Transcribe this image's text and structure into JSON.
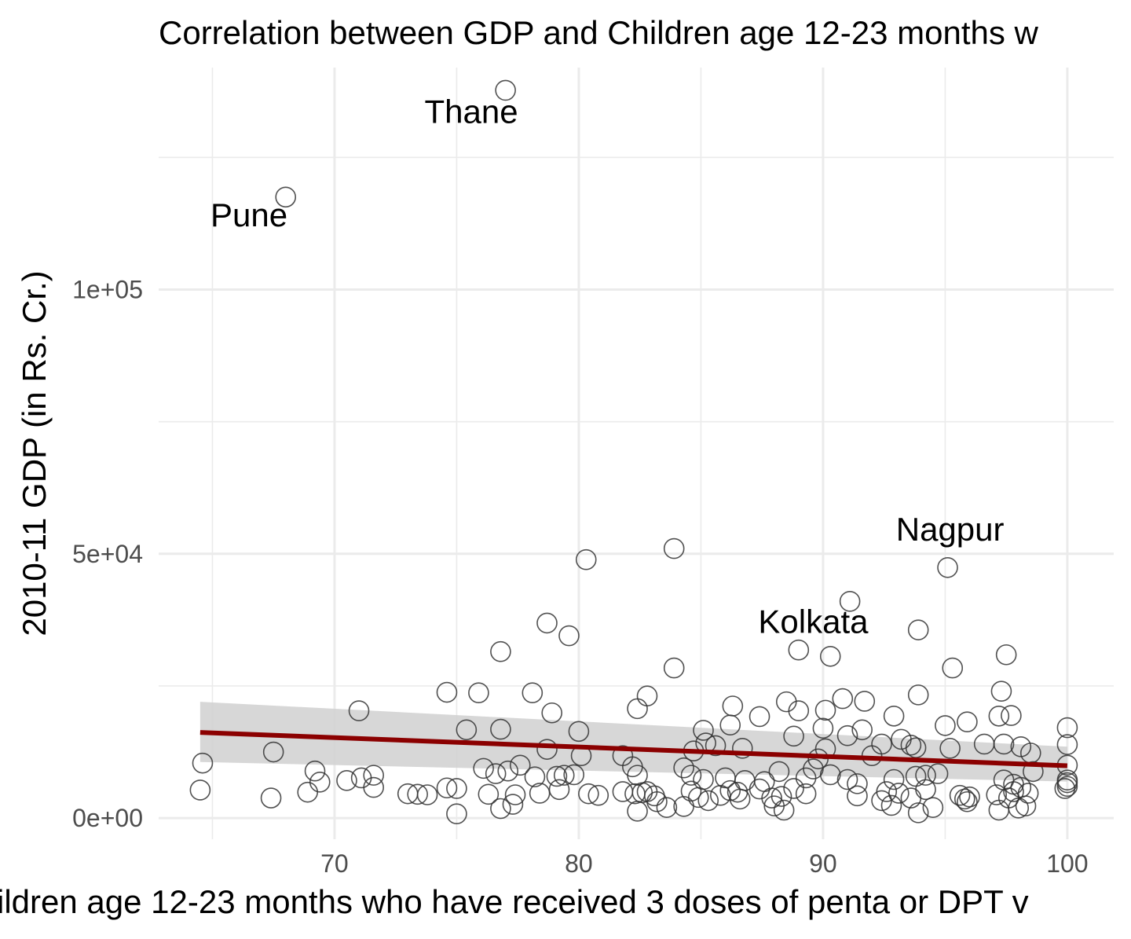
{
  "chart_data": {
    "type": "scatter",
    "title": "Correlation between GDP and Children age 12-23 months w",
    "xlabel": "ildren age 12-23 months who have received 3 doses of penta or DPT v",
    "ylabel": "2010-11 GDP (in Rs. Cr.)",
    "xlim": [
      62.8,
      101.9
    ],
    "ylim": [
      -4000,
      142000
    ],
    "x_ticks": [
      70,
      80,
      90,
      100
    ],
    "x_tick_labels": [
      "70",
      "80",
      "90",
      "100"
    ],
    "y_ticks": [
      0,
      50000,
      100000
    ],
    "y_tick_labels": [
      "0e+00",
      "5e+04",
      "1e+05"
    ],
    "grid": true,
    "colors": {
      "points": "#333333",
      "trend": "#8b0000",
      "band": "#d3d3d3",
      "grid": "#ebebeb"
    },
    "trend": {
      "x": [
        64.5,
        100
      ],
      "y": [
        16200,
        9900
      ],
      "lower": [
        10600,
        6900
      ],
      "upper": [
        22000,
        13500
      ]
    },
    "labels": [
      {
        "text": "Thane",
        "x": 75.6,
        "y": 131500
      },
      {
        "text": "Pune",
        "x": 66.5,
        "y": 112000
      },
      {
        "text": "Nagpur",
        "x": 95.2,
        "y": 52500
      },
      {
        "text": "Kolkata",
        "x": 89.6,
        "y": 35000
      }
    ],
    "points": [
      [
        77.0,
        137700
      ],
      [
        68.0,
        117500
      ],
      [
        83.9,
        51000
      ],
      [
        80.3,
        48900
      ],
      [
        95.1,
        47400
      ],
      [
        91.1,
        41000
      ],
      [
        78.7,
        36900
      ],
      [
        93.9,
        35600
      ],
      [
        79.6,
        34500
      ],
      [
        76.8,
        31500
      ],
      [
        89.0,
        31800
      ],
      [
        90.3,
        30600
      ],
      [
        97.5,
        30900
      ],
      [
        83.9,
        28400
      ],
      [
        95.3,
        28400
      ],
      [
        74.6,
        23800
      ],
      [
        75.9,
        23700
      ],
      [
        78.1,
        23700
      ],
      [
        82.8,
        23100
      ],
      [
        93.9,
        23300
      ],
      [
        97.3,
        24000
      ],
      [
        71.0,
        20300
      ],
      [
        78.9,
        19900
      ],
      [
        82.4,
        20700
      ],
      [
        86.3,
        21200
      ],
      [
        88.5,
        22000
      ],
      [
        91.7,
        22100
      ],
      [
        90.8,
        22600
      ],
      [
        89.0,
        20300
      ],
      [
        90.1,
        20400
      ],
      [
        92.9,
        19300
      ],
      [
        87.4,
        19200
      ],
      [
        86.2,
        17600
      ],
      [
        85.1,
        16600
      ],
      [
        91.6,
        16700
      ],
      [
        90.0,
        17000
      ],
      [
        95.0,
        17500
      ],
      [
        95.9,
        18200
      ],
      [
        97.2,
        19300
      ],
      [
        97.7,
        19400
      ],
      [
        100.0,
        17100
      ],
      [
        75.4,
        16700
      ],
      [
        76.8,
        16800
      ],
      [
        80.0,
        16400
      ],
      [
        91.0,
        15600
      ],
      [
        88.8,
        15500
      ],
      [
        93.2,
        14900
      ],
      [
        93.6,
        13800
      ],
      [
        92.4,
        14000
      ],
      [
        96.6,
        14000
      ],
      [
        97.4,
        14000
      ],
      [
        98.1,
        13500
      ],
      [
        100.0,
        13900
      ],
      [
        64.6,
        10400
      ],
      [
        67.5,
        12500
      ],
      [
        78.7,
        13000
      ],
      [
        80.1,
        11800
      ],
      [
        81.8,
        11800
      ],
      [
        84.7,
        12700
      ],
      [
        85.6,
        13700
      ],
      [
        85.2,
        14200
      ],
      [
        86.7,
        13200
      ],
      [
        90.1,
        13100
      ],
      [
        95.2,
        13200
      ],
      [
        93.8,
        13300
      ],
      [
        92.0,
        11800
      ],
      [
        89.8,
        11200
      ],
      [
        98.5,
        12300
      ],
      [
        100.0,
        10000
      ],
      [
        69.2,
        8900
      ],
      [
        69.4,
        6800
      ],
      [
        70.5,
        7100
      ],
      [
        71.1,
        7600
      ],
      [
        71.6,
        8100
      ],
      [
        71.6,
        5800
      ],
      [
        76.1,
        9400
      ],
      [
        76.6,
        8400
      ],
      [
        77.1,
        8900
      ],
      [
        77.6,
        10000
      ],
      [
        78.2,
        7800
      ],
      [
        79.1,
        7900
      ],
      [
        79.4,
        8100
      ],
      [
        79.8,
        8200
      ],
      [
        82.2,
        9700
      ],
      [
        82.4,
        8100
      ],
      [
        84.3,
        9500
      ],
      [
        84.6,
        8100
      ],
      [
        85.1,
        7300
      ],
      [
        86.0,
        7600
      ],
      [
        86.8,
        7100
      ],
      [
        87.6,
        6900
      ],
      [
        88.2,
        8800
      ],
      [
        89.3,
        7600
      ],
      [
        89.6,
        9300
      ],
      [
        90.3,
        8200
      ],
      [
        91.0,
        7300
      ],
      [
        91.4,
        6500
      ],
      [
        92.9,
        7300
      ],
      [
        93.8,
        7900
      ],
      [
        94.2,
        8100
      ],
      [
        94.7,
        8400
      ],
      [
        97.4,
        7200
      ],
      [
        97.8,
        6400
      ],
      [
        98.6,
        8800
      ],
      [
        100.0,
        7200
      ],
      [
        100.0,
        6000
      ],
      [
        64.5,
        5300
      ],
      [
        67.4,
        3800
      ],
      [
        68.9,
        4900
      ],
      [
        73.0,
        4600
      ],
      [
        73.4,
        4500
      ],
      [
        73.8,
        4400
      ],
      [
        74.6,
        5700
      ],
      [
        75.0,
        5600
      ],
      [
        75.0,
        800
      ],
      [
        76.3,
        4500
      ],
      [
        76.8,
        1800
      ],
      [
        77.3,
        2600
      ],
      [
        77.4,
        4400
      ],
      [
        78.4,
        4700
      ],
      [
        79.2,
        5400
      ],
      [
        80.4,
        4600
      ],
      [
        80.8,
        4300
      ],
      [
        81.8,
        5000
      ],
      [
        82.3,
        4600
      ],
      [
        82.6,
        4800
      ],
      [
        82.4,
        1300
      ],
      [
        82.8,
        5000
      ],
      [
        83.2,
        3100
      ],
      [
        83.6,
        2000
      ],
      [
        84.3,
        2200
      ],
      [
        84.6,
        5100
      ],
      [
        85.3,
        3300
      ],
      [
        85.8,
        4300
      ],
      [
        86.2,
        5200
      ],
      [
        86.6,
        3600
      ],
      [
        87.4,
        5500
      ],
      [
        87.9,
        3800
      ],
      [
        88.0,
        2300
      ],
      [
        88.4,
        1500
      ],
      [
        88.8,
        5600
      ],
      [
        89.3,
        4600
      ],
      [
        91.4,
        4200
      ],
      [
        92.4,
        3300
      ],
      [
        92.8,
        2400
      ],
      [
        93.1,
        4700
      ],
      [
        93.6,
        3800
      ],
      [
        93.9,
        1000
      ],
      [
        94.2,
        5400
      ],
      [
        94.5,
        2000
      ],
      [
        95.6,
        4300
      ],
      [
        95.9,
        3100
      ],
      [
        97.1,
        4400
      ],
      [
        97.2,
        1500
      ],
      [
        97.6,
        3800
      ],
      [
        97.8,
        5000
      ],
      [
        98.0,
        1900
      ],
      [
        98.3,
        2300
      ],
      [
        98.4,
        4700
      ],
      [
        98.1,
        5800
      ],
      [
        100.0,
        6700
      ],
      [
        99.9,
        5600
      ],
      [
        96.0,
        4000
      ],
      [
        95.8,
        3600
      ],
      [
        92.6,
        5000
      ],
      [
        88.3,
        4100
      ],
      [
        86.5,
        4900
      ],
      [
        84.9,
        3900
      ],
      [
        83.1,
        4200
      ]
    ]
  }
}
